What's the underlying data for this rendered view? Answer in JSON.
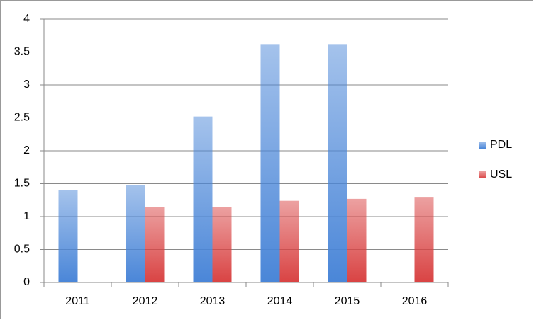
{
  "chart_data": {
    "type": "bar",
    "categories": [
      "2011",
      "2012",
      "2013",
      "2014",
      "2015",
      "2016"
    ],
    "series": [
      {
        "name": "PDL",
        "color": "#4a86d8",
        "values": [
          1.4,
          1.48,
          2.52,
          3.62,
          3.62,
          null
        ]
      },
      {
        "name": "USL",
        "color": "#d94343",
        "values": [
          null,
          1.15,
          1.15,
          1.24,
          1.27,
          1.3
        ]
      }
    ],
    "ylim": [
      0,
      4
    ],
    "yticks": [
      0,
      0.5,
      1,
      1.5,
      2,
      2.5,
      3,
      3.5,
      4
    ],
    "grid": true,
    "legend": "right"
  }
}
